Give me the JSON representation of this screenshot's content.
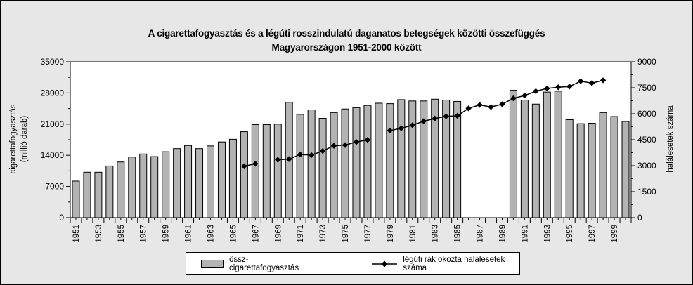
{
  "chart": {
    "title_line1": "A cigarettafogyasztás és a légúti rosszindulatú daganatos betegségek közötti összefüggés",
    "title_line2": "Magyarországon 1951-2000 között",
    "left_axis_title_line1": "cigarettafogyasztás",
    "left_axis_title_line2": "(millió darab)",
    "right_axis_title": "halálesetek száma",
    "colors": {
      "bar_fill": "#b3b3b3",
      "bar_stroke": "#000000",
      "line": "#000000",
      "plot_bg": "#ffffff",
      "page_bg": "#e7e7e7"
    }
  },
  "legend": {
    "bar_label": "össz-cigarettafogyasztás",
    "line_label": "légúti rák okozta halálesetek száma"
  },
  "chart_data": {
    "type": "bar",
    "subtype": "bar+line dual axis",
    "year_start": 1951,
    "year_end": 2000,
    "x_tick_labels": [
      "1951",
      "1953",
      "1955",
      "1957",
      "1959",
      "1961",
      "1963",
      "1965",
      "1967",
      "1969",
      "1971",
      "1973",
      "1975",
      "1977",
      "1979",
      "1981",
      "1983",
      "1985",
      "1987",
      "1989",
      "1991",
      "1993",
      "1995",
      "1997",
      "1999"
    ],
    "left_axis": {
      "label": "cigarettafogyasztás (millió darab)",
      "min": 0,
      "max": 35000,
      "ticks": [
        0,
        7000,
        14000,
        21000,
        28000,
        35000
      ],
      "minor_step": 3500
    },
    "right_axis": {
      "label": "halálesetek száma",
      "min": 0,
      "max": 9000,
      "ticks": [
        0,
        1500,
        3000,
        4500,
        6000,
        7500,
        9000
      ],
      "minor_step": 750
    },
    "grid": false,
    "legend_position": "bottom",
    "series": [
      {
        "name": "össz-cigarettafogyasztás",
        "type": "bar",
        "axis": "left",
        "values": [
          8200,
          10200,
          10200,
          11600,
          12500,
          13600,
          14300,
          13700,
          14800,
          15500,
          16200,
          15500,
          16100,
          17000,
          17600,
          19300,
          20900,
          20900,
          21000,
          25900,
          23200,
          24200,
          22300,
          23600,
          24400,
          24700,
          25200,
          25700,
          25600,
          26500,
          26200,
          26200,
          26600,
          26400,
          26100,
          null,
          null,
          null,
          null,
          28600,
          26400,
          25500,
          28200,
          28400,
          22000,
          21100,
          21200,
          23600,
          22700,
          21600
        ]
      },
      {
        "name": "légúti rák okozta halálesetek száma",
        "type": "line",
        "axis": "right",
        "values": [
          null,
          null,
          null,
          null,
          null,
          null,
          null,
          null,
          null,
          null,
          null,
          null,
          null,
          null,
          null,
          2970,
          3110,
          null,
          3340,
          3380,
          3650,
          3610,
          3850,
          4150,
          4190,
          4370,
          4490,
          null,
          5030,
          5160,
          5340,
          5570,
          5720,
          5850,
          5880,
          6310,
          6510,
          6390,
          6550,
          6890,
          7050,
          7300,
          7460,
          7530,
          7570,
          7880,
          7770,
          7930,
          null,
          null
        ]
      }
    ]
  }
}
